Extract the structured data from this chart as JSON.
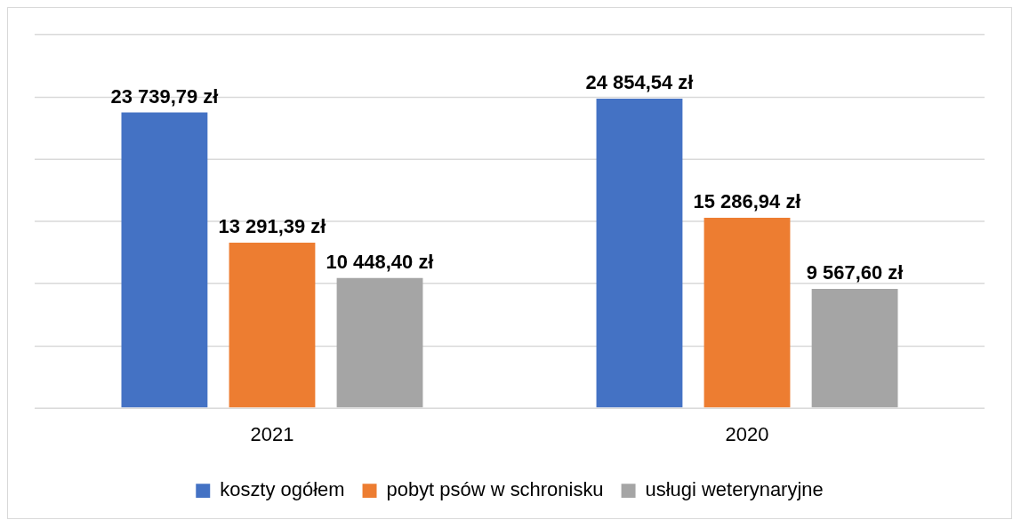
{
  "chart_data": {
    "type": "bar",
    "categories": [
      "2021",
      "2020"
    ],
    "series": [
      {
        "name": "koszty ogółem",
        "color": "#4472c4",
        "values": [
          23739.79,
          24854.54
        ],
        "value_labels": [
          "23 739,79 zł",
          "24 854,54 zł"
        ]
      },
      {
        "name": "pobyt psów w schronisku",
        "color": "#ed7d31",
        "values": [
          13291.39,
          15286.94
        ],
        "value_labels": [
          "13 291,39 zł",
          "15 286,94 zł"
        ]
      },
      {
        "name": "usługi weterynaryjne",
        "color": "#a5a5a5",
        "values": [
          10448.4,
          9567.6
        ],
        "value_labels": [
          "10 448,40 zł",
          "9 567,60 zł"
        ]
      }
    ],
    "ylim": [
      0,
      30000
    ],
    "yticks": [
      {
        "value": 0,
        "label": null
      },
      {
        "value": 5000,
        "label": null
      },
      {
        "value": 10000,
        "label": null
      },
      {
        "value": 15000,
        "label": null
      },
      {
        "value": 20000,
        "label": null
      },
      {
        "value": 25000,
        "label": null
      },
      {
        "value": 30000,
        "label": null
      }
    ],
    "tick_labels": "x",
    "grid": "y",
    "legend": "bottom"
  }
}
